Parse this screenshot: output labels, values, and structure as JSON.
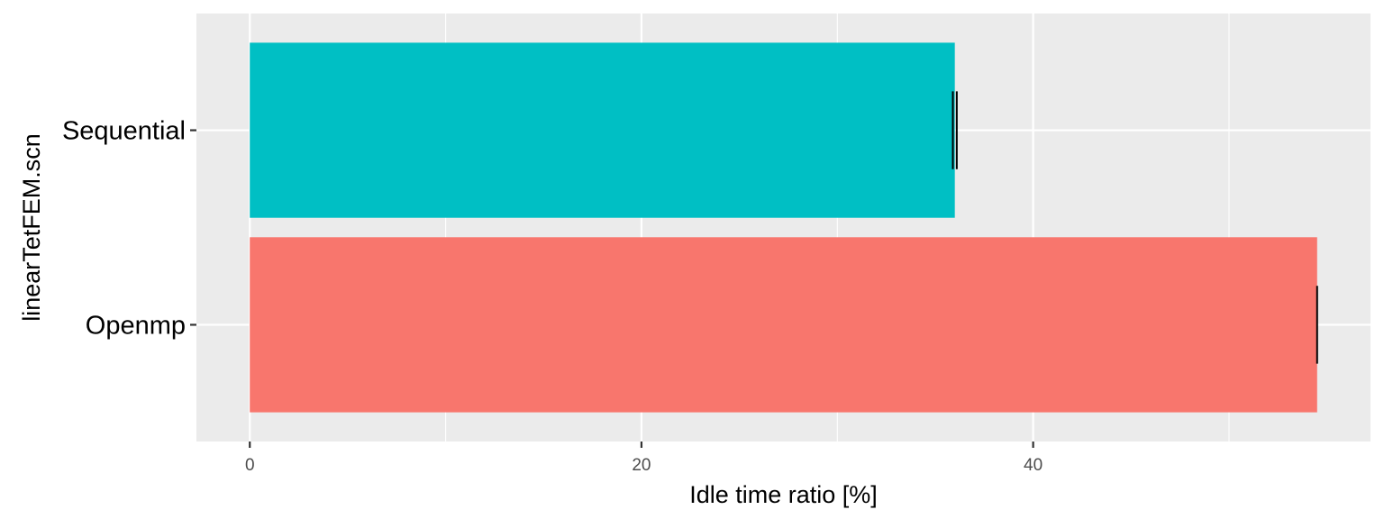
{
  "chart_data": {
    "type": "bar",
    "orientation": "horizontal",
    "categories": [
      "Openmp",
      "Sequential"
    ],
    "values": [
      54.5,
      36.0
    ],
    "error_bars": [
      [
        54.5,
        54.5
      ],
      [
        35.9,
        36.1
      ]
    ],
    "colors": [
      "#F8766D",
      "#00BFC4"
    ],
    "title": "",
    "xlabel": "Idle time ratio [%]",
    "ylabel": "linearTetFEM.scn",
    "xlim": [
      -2.725,
      57.225
    ],
    "x_ticks": [
      0,
      20,
      40
    ],
    "x_minor_ticks": [
      10,
      30,
      50
    ],
    "grid": true,
    "legend": "none",
    "panel_background": "#EBEBEB"
  }
}
